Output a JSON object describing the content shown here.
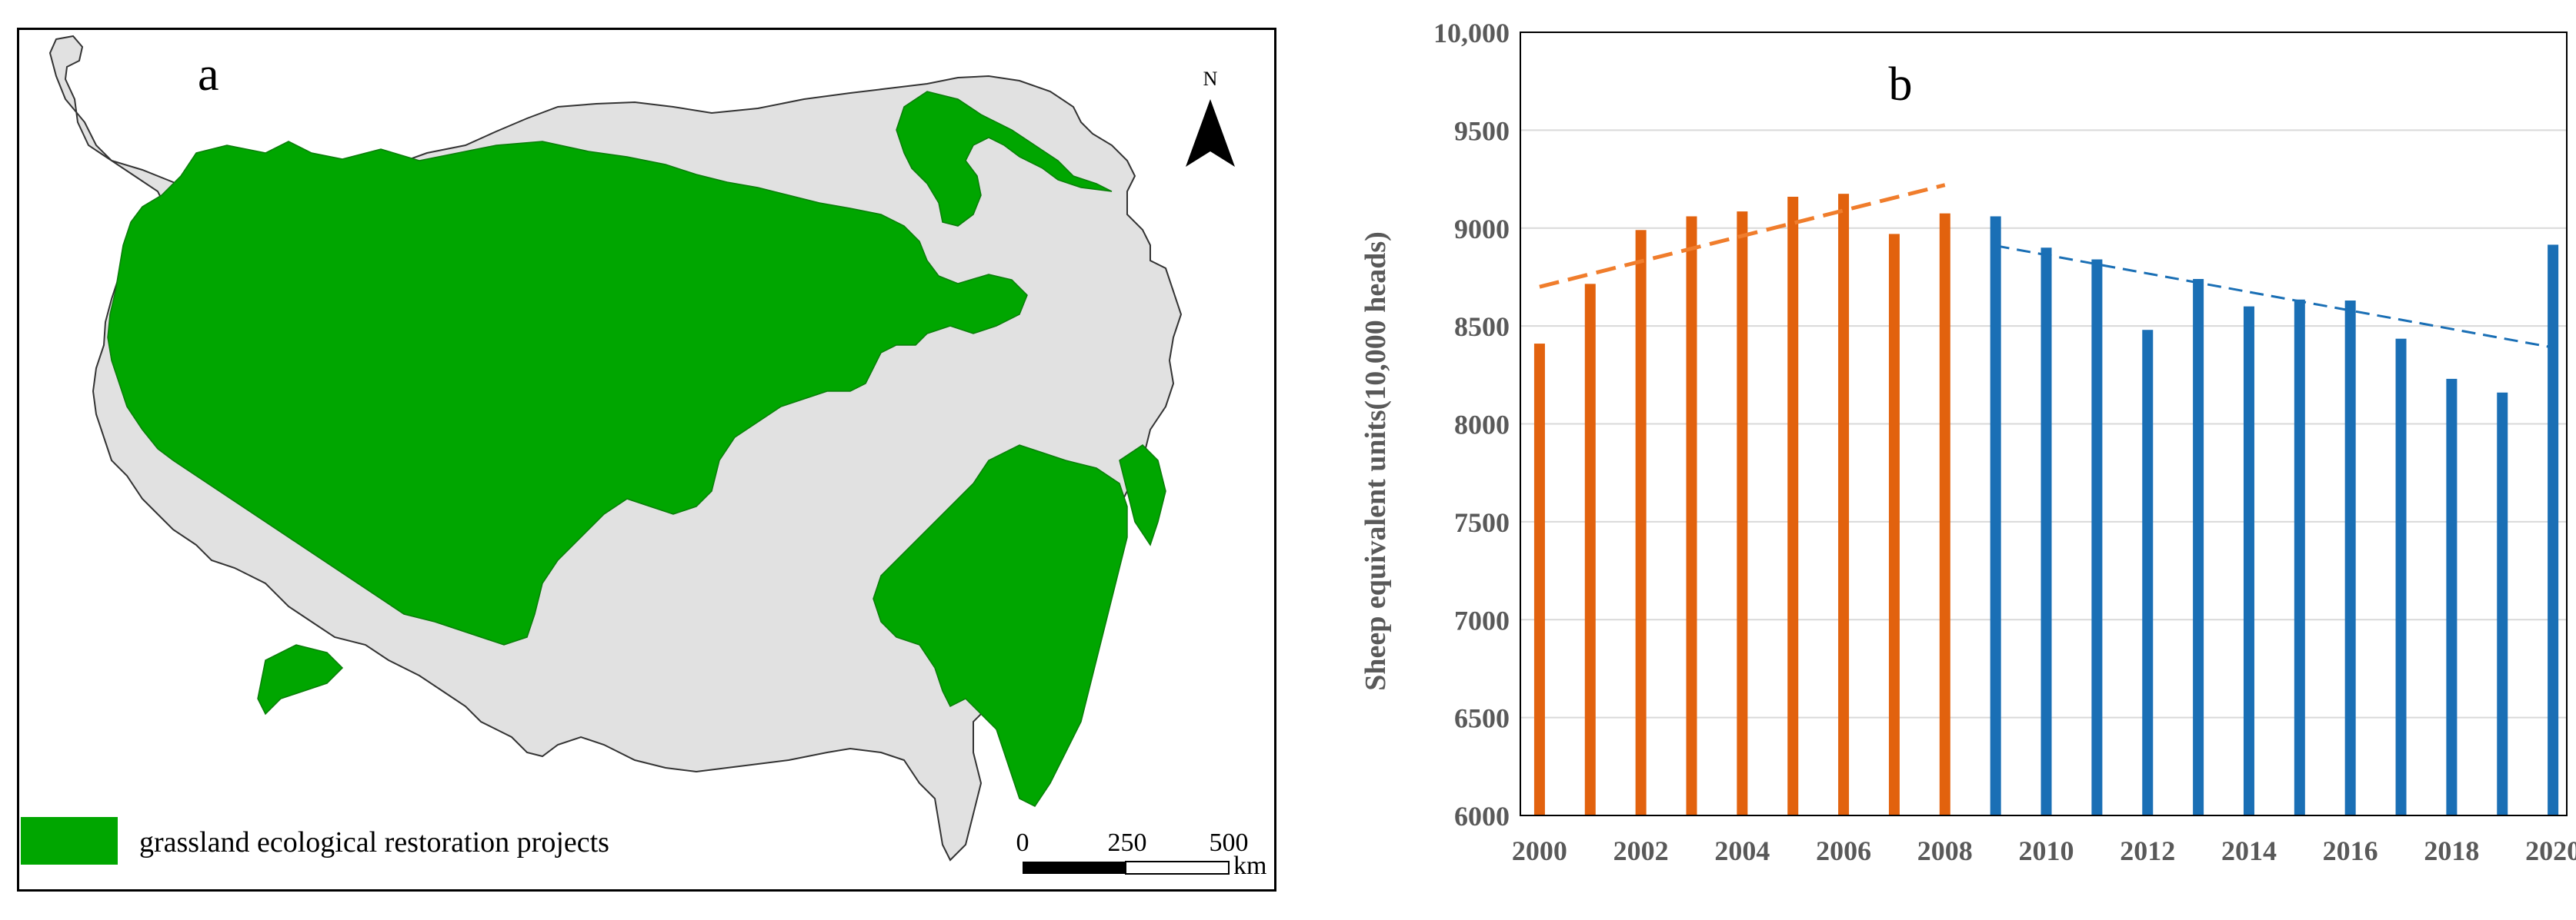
{
  "panel_a": {
    "label": "a",
    "north_label": "N",
    "legend_label": "grassland ecological restoration projects",
    "scale_ticks": [
      "0",
      "250",
      "500"
    ],
    "scale_unit": "km",
    "colors": {
      "region": "#e1e1e1",
      "project": "#00a600",
      "outline": "#333333"
    }
  },
  "panel_b": {
    "label": "b",
    "chart_data": {
      "type": "bar",
      "xlabel": "",
      "ylabel": "Sheep equivalent units(10,000 heads)",
      "ylim": [
        6000,
        10000
      ],
      "y_ticks": [
        "6000",
        "6500",
        "7000",
        "7500",
        "8000",
        "8500",
        "9000",
        "9500",
        "10,000"
      ],
      "x_tick_labels": [
        "2000",
        "2002",
        "2004",
        "2006",
        "2008",
        "2010",
        "2012",
        "2014",
        "2016",
        "2018",
        "2020"
      ],
      "grid": true,
      "categories": [
        "2000",
        "2001",
        "2002",
        "2003",
        "2004",
        "2005",
        "2006",
        "2007",
        "2008",
        "2009",
        "2010",
        "2011",
        "2012",
        "2013",
        "2014",
        "2015",
        "2016",
        "2017",
        "2018",
        "2019",
        "2020"
      ],
      "series": [
        {
          "color": "#e2620e",
          "x": [
            "2000",
            "2001",
            "2002",
            "2003",
            "2004",
            "2005",
            "2006",
            "2007",
            "2008"
          ],
          "values": [
            8410,
            8715,
            8990,
            9060,
            9085,
            9160,
            9175,
            8970,
            9075
          ],
          "trend": {
            "style": "dashed",
            "from": [
              "2000",
              8700
            ],
            "to": [
              "2008",
              9220
            ]
          }
        },
        {
          "color": "#1a6fb5",
          "x": [
            "2009",
            "2010",
            "2011",
            "2012",
            "2013",
            "2014",
            "2015",
            "2016",
            "2017",
            "2018",
            "2019",
            "2020"
          ],
          "values": [
            9060,
            8900,
            8840,
            8480,
            8740,
            8600,
            8635,
            8630,
            8435,
            8230,
            8160,
            8915
          ],
          "trend": {
            "style": "dashed",
            "from": [
              "2009",
              8910
            ],
            "to": [
              "2020",
              8390
            ]
          }
        }
      ]
    }
  }
}
